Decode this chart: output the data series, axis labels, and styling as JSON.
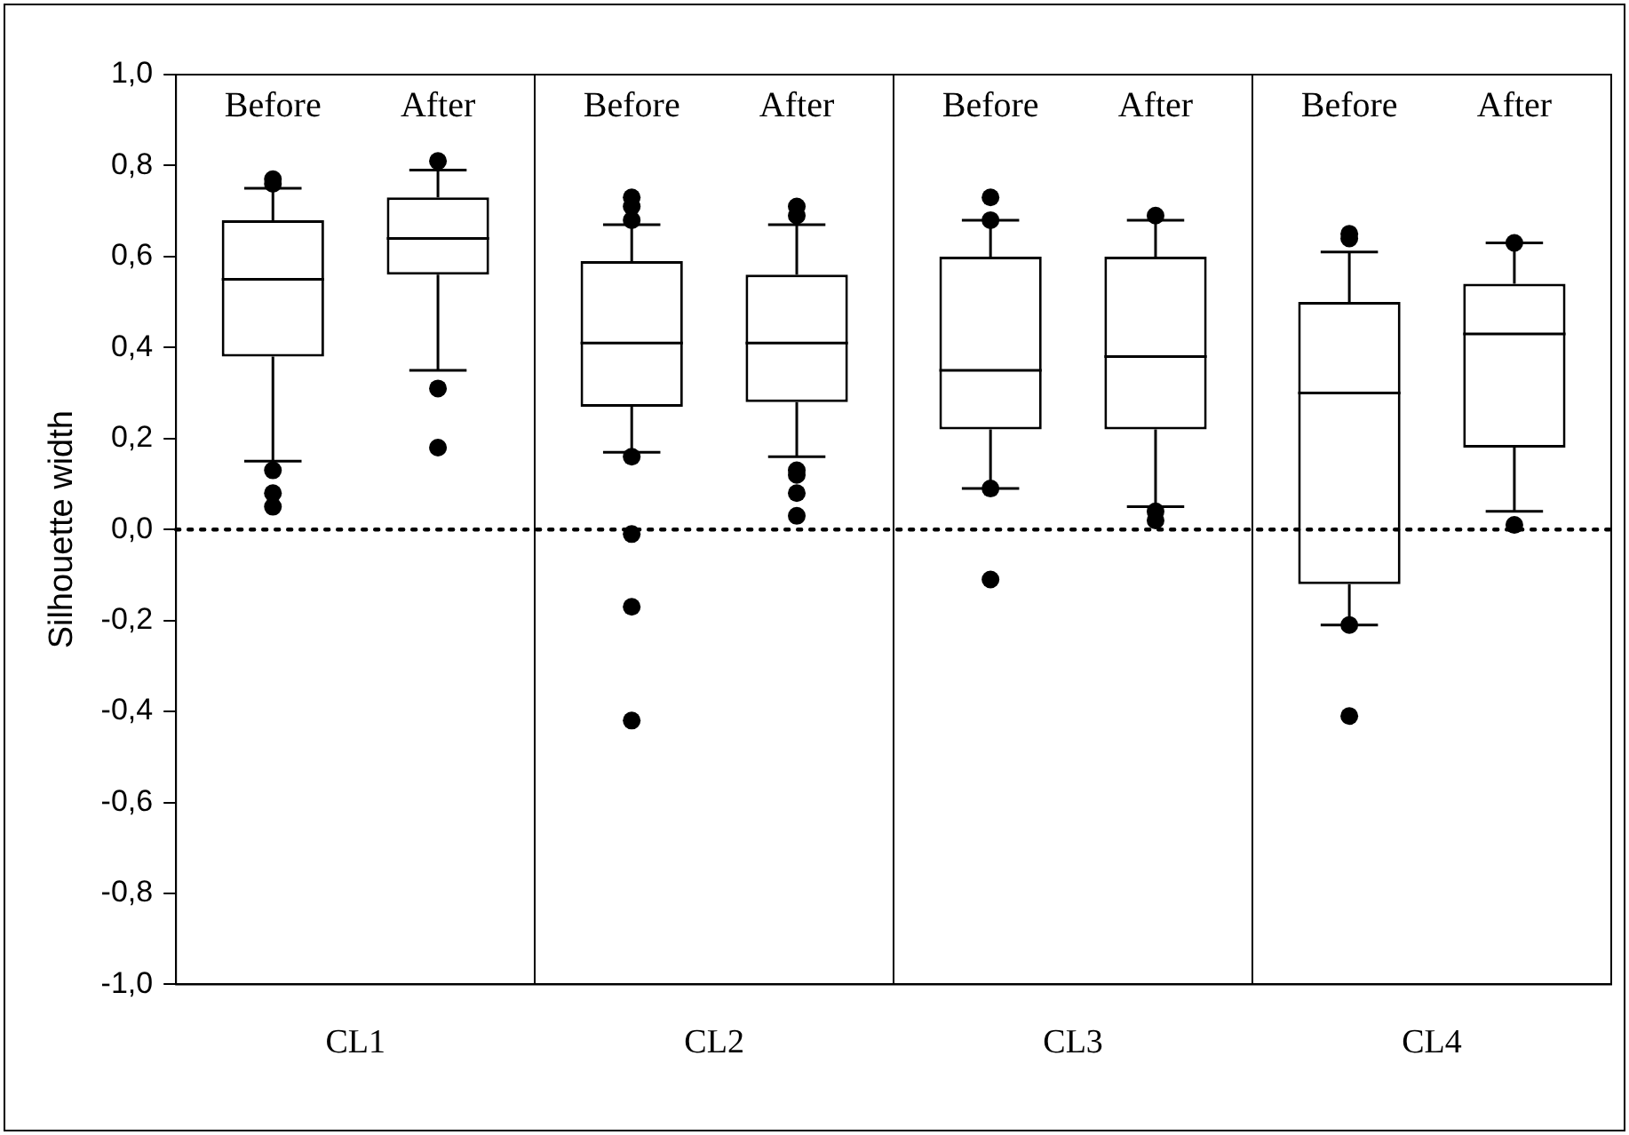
{
  "chart_data": {
    "type": "box",
    "ylabel": "Silhouette width",
    "categories": [
      "CL1",
      "CL2",
      "CL3",
      "CL4"
    ],
    "series": [
      {
        "name": "Before",
        "color": "#000000",
        "boxes": [
          {
            "low": 0.15,
            "q1": 0.38,
            "median": 0.55,
            "q3": 0.68,
            "high": 0.75,
            "outliers": [
              0.77,
              0.76,
              0.13,
              0.08,
              0.05
            ]
          },
          {
            "low": 0.17,
            "q1": 0.27,
            "median": 0.41,
            "q3": 0.59,
            "high": 0.67,
            "outliers": [
              0.73,
              0.71,
              0.68,
              0.16,
              -0.01,
              -0.17,
              -0.42
            ]
          },
          {
            "low": 0.09,
            "q1": 0.22,
            "median": 0.35,
            "q3": 0.6,
            "high": 0.68,
            "outliers": [
              0.73,
              0.68,
              0.09,
              -0.11
            ]
          },
          {
            "low": -0.21,
            "q1": -0.12,
            "median": 0.3,
            "q3": 0.5,
            "high": 0.61,
            "outliers": [
              0.65,
              0.64,
              -0.21,
              -0.41
            ]
          }
        ]
      },
      {
        "name": "After",
        "color": "#000000",
        "boxes": [
          {
            "low": 0.35,
            "q1": 0.56,
            "median": 0.64,
            "q3": 0.73,
            "high": 0.79,
            "outliers": [
              0.81,
              0.31,
              0.18
            ]
          },
          {
            "low": 0.16,
            "q1": 0.28,
            "median": 0.41,
            "q3": 0.56,
            "high": 0.67,
            "outliers": [
              0.71,
              0.69,
              0.13,
              0.12,
              0.08,
              0.03
            ]
          },
          {
            "low": 0.05,
            "q1": 0.22,
            "median": 0.38,
            "q3": 0.6,
            "high": 0.68,
            "outliers": [
              0.69,
              0.04,
              0.02
            ]
          },
          {
            "low": 0.04,
            "q1": 0.18,
            "median": 0.43,
            "q3": 0.54,
            "high": 0.63,
            "outliers": [
              0.63,
              0.01
            ]
          }
        ]
      }
    ],
    "ylim": [
      -1,
      1
    ],
    "yticks": [
      {
        "value": -1,
        "label": "-1,0"
      },
      {
        "value": -0.8,
        "label": "-0,8"
      },
      {
        "value": -0.6,
        "label": "-0,6"
      },
      {
        "value": -0.4,
        "label": "-0,4"
      },
      {
        "value": -0.2,
        "label": "-0,2"
      },
      {
        "value": 0,
        "label": "0,0"
      },
      {
        "value": 0.2,
        "label": "0,2"
      },
      {
        "value": 0.4,
        "label": "0,4"
      },
      {
        "value": 0.6,
        "label": "0,6"
      },
      {
        "value": 0.8,
        "label": "0,8"
      },
      {
        "value": 1,
        "label": "1,0"
      }
    ],
    "grid": "x",
    "legend": false,
    "marker": "circle",
    "ref_lines": [
      {
        "axis": "y",
        "value": 0,
        "color": "#000000",
        "line_style": "dotted"
      }
    ]
  }
}
